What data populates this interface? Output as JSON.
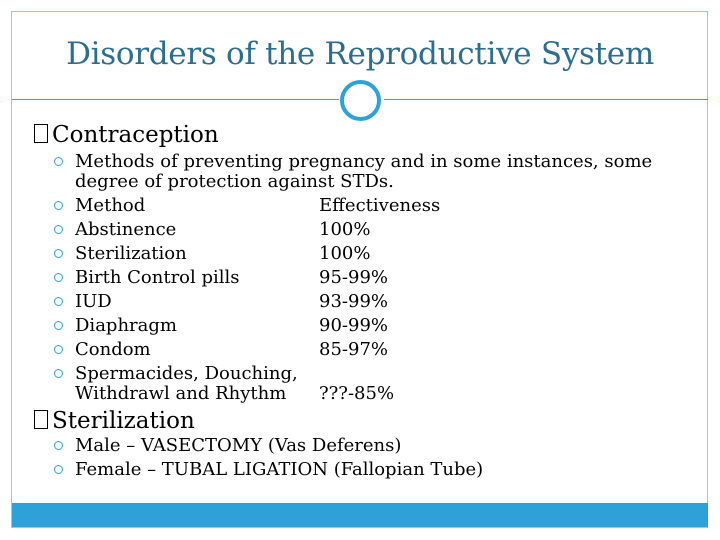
{
  "title": "Disorders of the Reproductive System",
  "section1": {
    "heading": "Contraception",
    "intro": [
      "Methods of preventing pregnancy and in some instances, some",
      "degree of protection against STDs."
    ],
    "header_row": {
      "method": "Method",
      "effectiveness": "Effectiveness"
    },
    "rows": [
      {
        "method": "Abstinence",
        "effectiveness": "100%"
      },
      {
        "method": "Sterilization",
        "effectiveness": "100%"
      },
      {
        "method": "Birth Control pills",
        "effectiveness": "95-99%"
      },
      {
        "method": "IUD",
        "effectiveness": "93-99%"
      },
      {
        "method": "Diaphragm",
        "effectiveness": "90-99%"
      },
      {
        "method": "Condom",
        "effectiveness": "85-97%"
      }
    ],
    "last_row": {
      "method_line1": "Spermacides, Douching,",
      "method_line2": "Withdrawl and Rhythm",
      "effectiveness": "???-85%"
    }
  },
  "section2": {
    "heading": "Sterilization",
    "items": [
      "Male – VASECTOMY (Vas Deferens)",
      "Female – TUBAL LIGATION (Fallopian Tube)"
    ]
  }
}
